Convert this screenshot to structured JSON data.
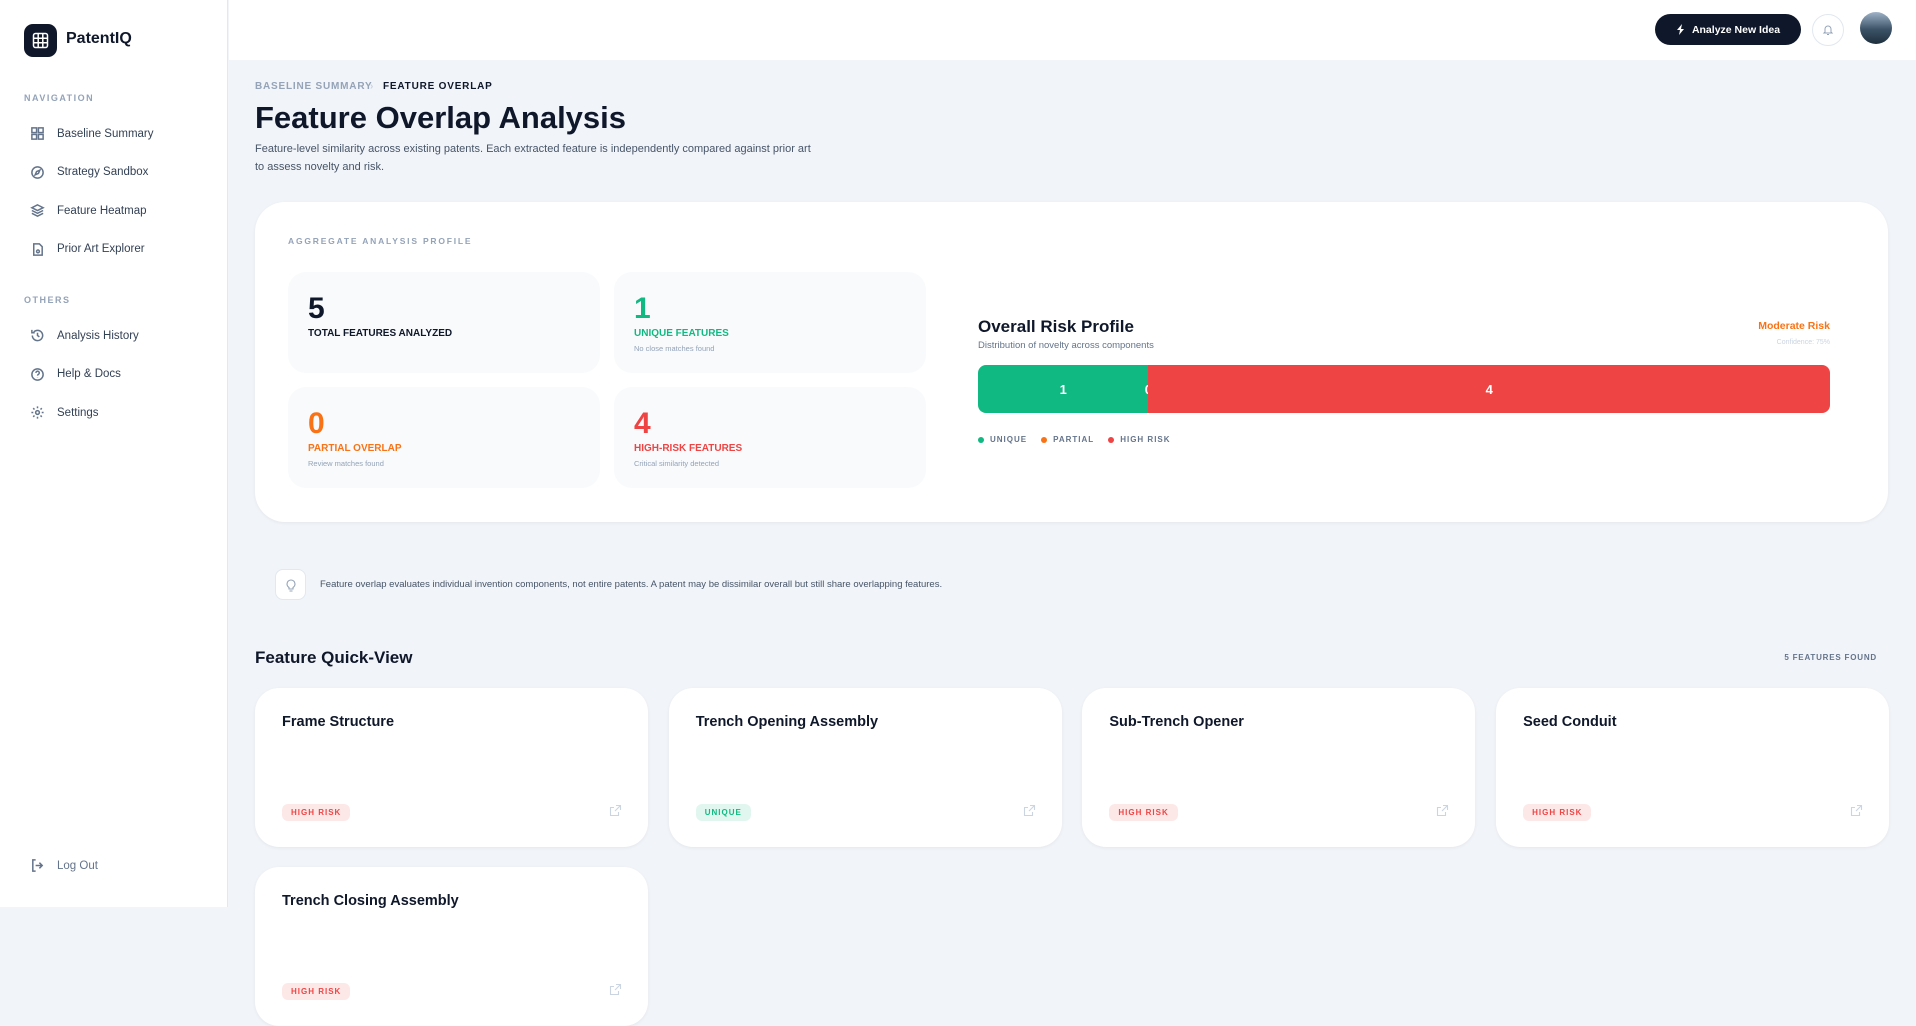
{
  "sidebar": {
    "brand": "PatentIQ",
    "sections": [
      {
        "title": "NAVIGATION",
        "items": [
          "Baseline Summary",
          "Strategy Sandbox",
          "Feature Heatmap",
          "Prior Art Explorer"
        ]
      },
      {
        "title": "OTHERS",
        "items": [
          "Analysis History",
          "Help & Docs",
          "Settings"
        ]
      }
    ],
    "logout": "Log Out"
  },
  "topbar": {
    "button": "Analyze New Idea"
  },
  "breadcrumb": [
    "BASELINE SUMMARY",
    "FEATURE OVERLAP"
  ],
  "header": {
    "title": "Feature Overlap Analysis",
    "description": "Feature-level similarity across existing patents. Each extracted feature is independently compared against prior art to assess novelty and risk."
  },
  "profile": {
    "label": "AGGREGATE ANALYSIS PROFILE",
    "stats": [
      {
        "value": 5,
        "label": "TOTAL FEATURES ANALYZED",
        "color": "#0f172a"
      },
      {
        "value": 1,
        "label": "UNIQUE FEATURES",
        "note": "No close matches found",
        "color": "#10b981"
      },
      {
        "value": 0,
        "label": "PARTIAL OVERLAP",
        "note": "Review matches found",
        "color": "#f97316"
      },
      {
        "value": 4,
        "label": "HIGH-RISK FEATURES",
        "note": "Critical similarity detected",
        "color": "#ef4444"
      }
    ],
    "risk": {
      "title": "Overall Risk Profile",
      "subtitle": "Distribution of novelty across components",
      "level": "Moderate Risk",
      "confidence": "Confidence: 75%",
      "segments": [
        {
          "name": "UNIQUE",
          "value": 1,
          "color": "#10b981"
        },
        {
          "name": "PARTIAL",
          "value": 0,
          "color": "#f97316"
        },
        {
          "name": "HIGH RISK",
          "value": 4,
          "color": "#ef4444"
        }
      ]
    }
  },
  "tip": "Feature overlap evaluates individual invention components, not entire patents. A patent may be dissimilar overall but still share overlapping features.",
  "quickview": {
    "title": "Feature Quick-View",
    "count": "5 FEATURES FOUND",
    "features": [
      {
        "name": "Frame Structure",
        "status": "HIGH RISK",
        "color": "#ef4444"
      },
      {
        "name": "Trench Opening Assembly",
        "status": "UNIQUE",
        "color": "#10b981"
      },
      {
        "name": "Sub-Trench Opener",
        "status": "HIGH RISK",
        "color": "#ef4444"
      },
      {
        "name": "Seed Conduit",
        "status": "HIGH RISK",
        "color": "#ef4444"
      },
      {
        "name": "Trench Closing Assembly",
        "status": "HIGH RISK",
        "color": "#ef4444"
      }
    ]
  }
}
